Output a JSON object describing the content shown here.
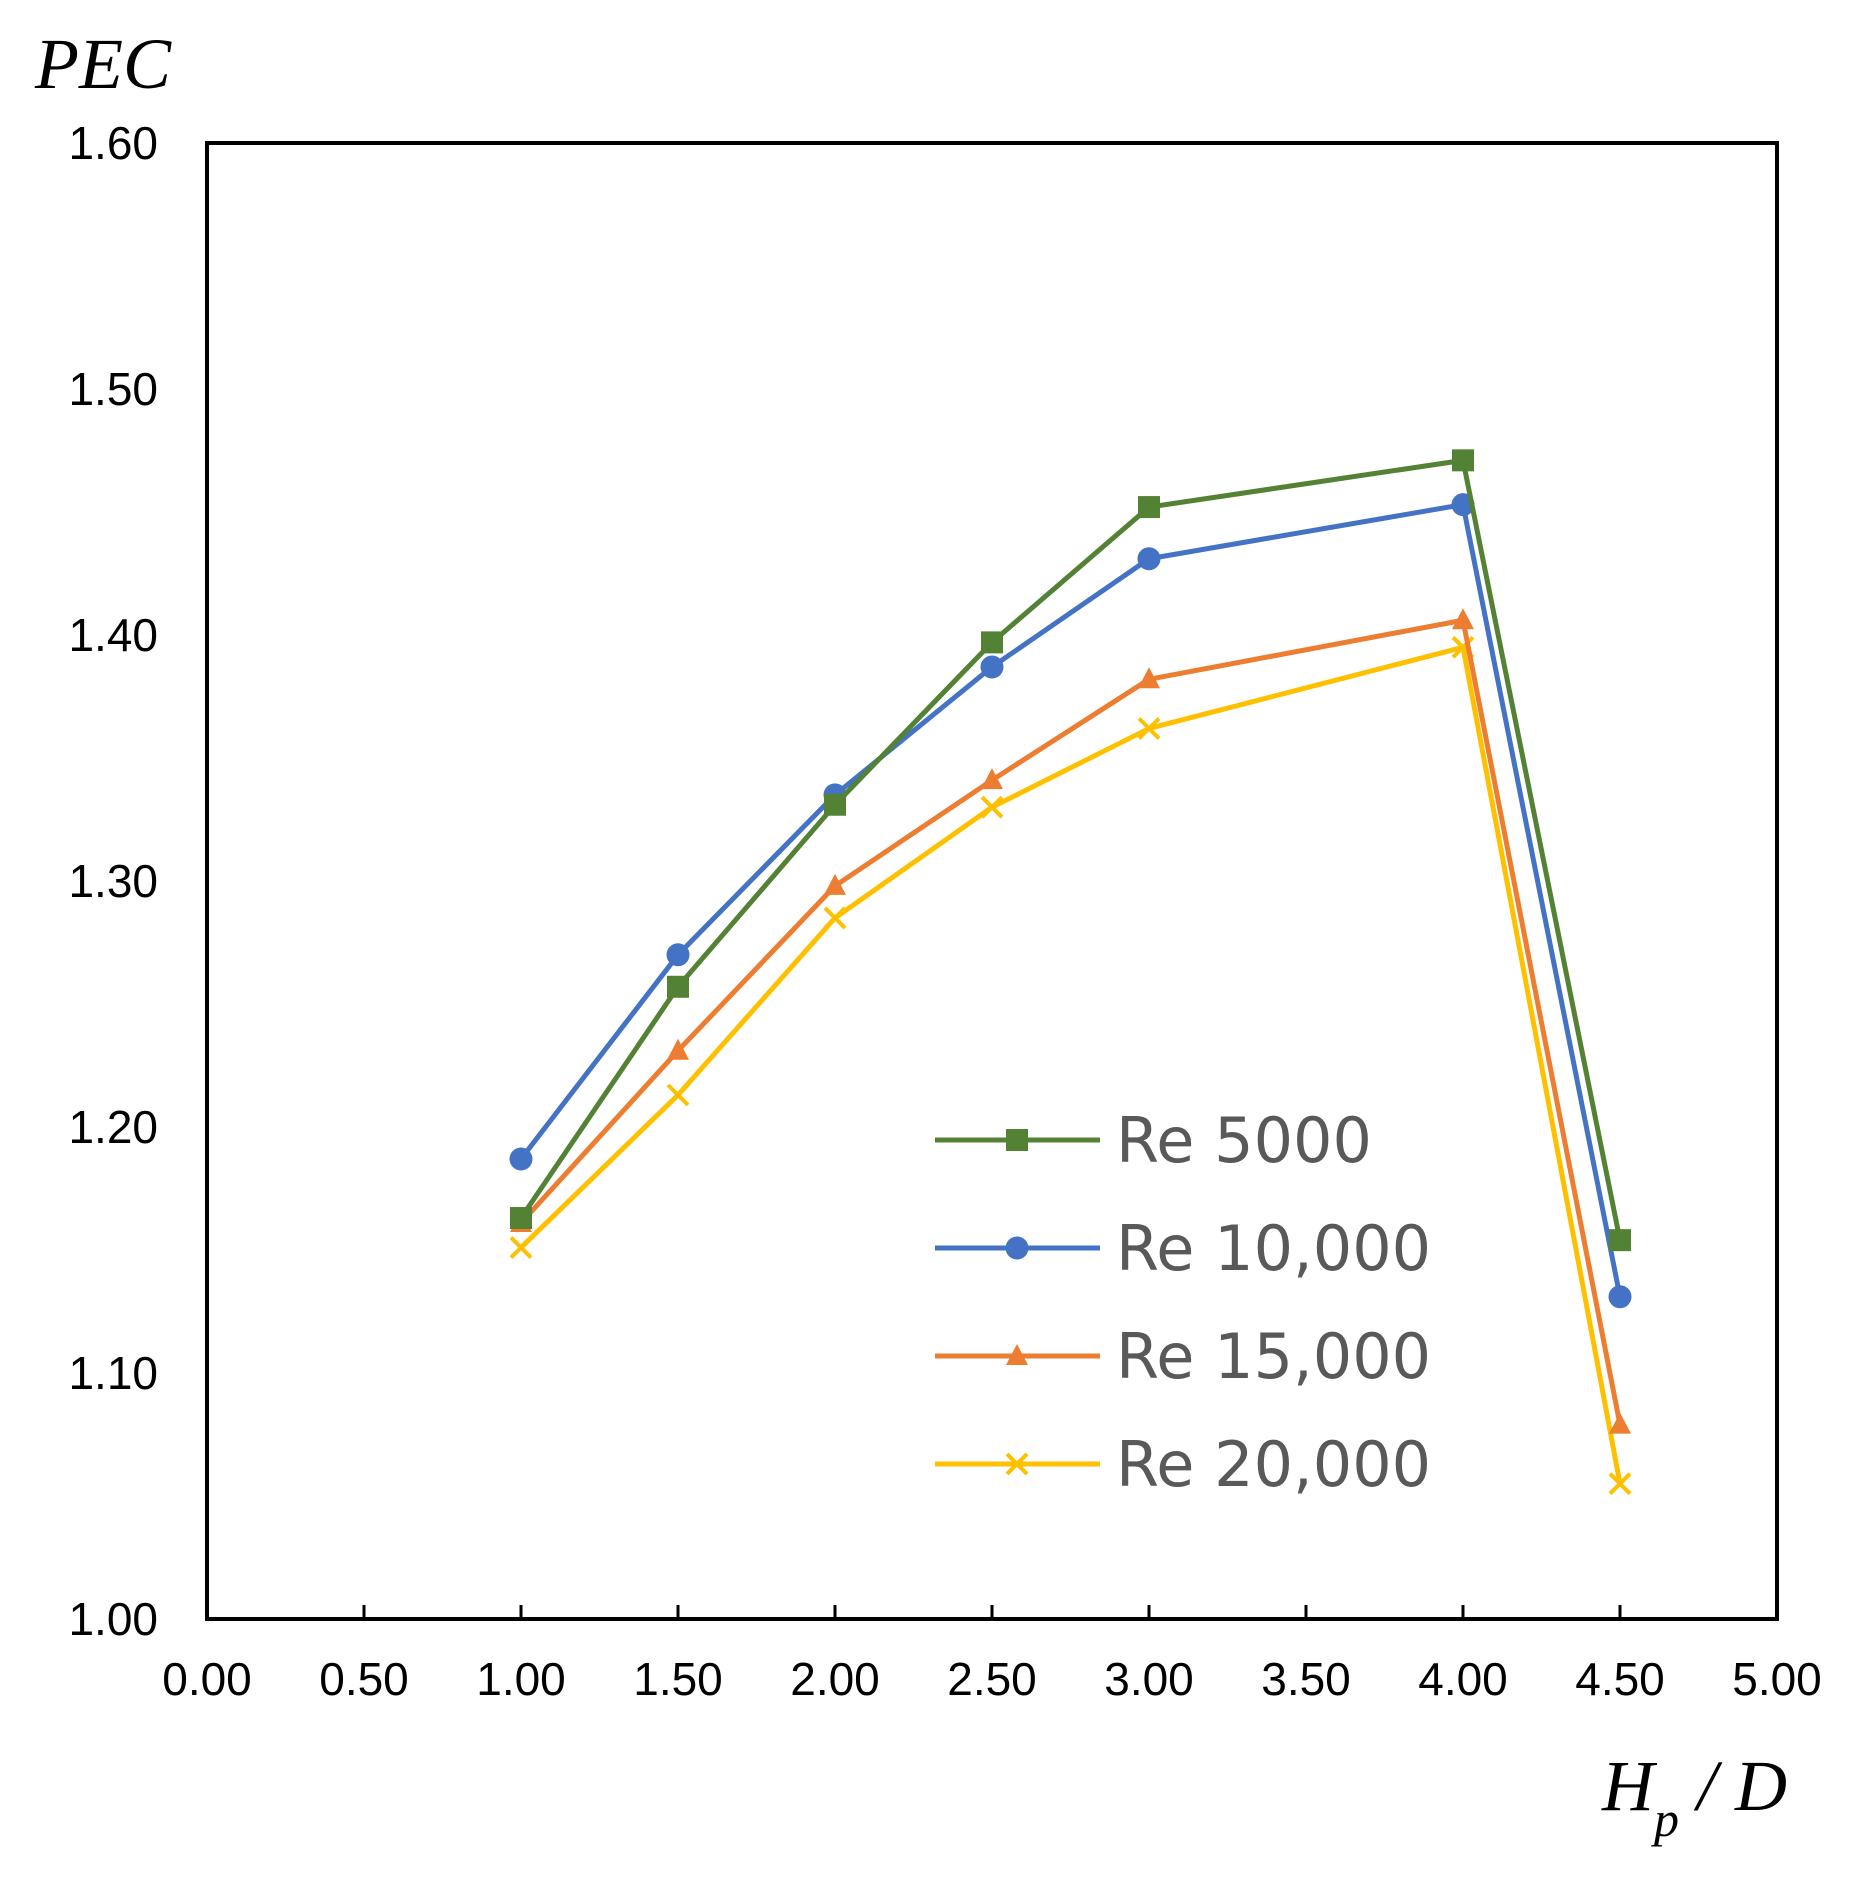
{
  "chart_data": {
    "type": "line",
    "title": "",
    "ylabel": "PEC",
    "xlabel": {
      "main": "H",
      "sub": "p",
      "rest": " / D"
    },
    "xlim": [
      0,
      5
    ],
    "ylim": [
      1.0,
      1.6
    ],
    "xticks": [
      "0.00",
      "0.50",
      "1.00",
      "1.50",
      "2.00",
      "2.50",
      "3.00",
      "3.50",
      "4.00",
      "4.50",
      "5.00"
    ],
    "yticks": [
      "1.00",
      "1.10",
      "1.20",
      "1.30",
      "1.40",
      "1.50",
      "1.60"
    ],
    "grid": false,
    "legend_position": "lower-right",
    "x": [
      1.0,
      1.5,
      2.0,
      2.5,
      3.0,
      4.0,
      4.5
    ],
    "series": [
      {
        "name": "Re 5000",
        "color": "#548235",
        "marker": "square",
        "values": [
          1.163,
          1.257,
          1.331,
          1.397,
          1.452,
          1.471,
          1.154
        ]
      },
      {
        "name": "Re 10,000",
        "color": "#4472C4",
        "marker": "circle",
        "values": [
          1.187,
          1.27,
          1.335,
          1.387,
          1.431,
          1.453,
          1.131
        ]
      },
      {
        "name": "Re 15,000",
        "color": "#ED7D31",
        "marker": "triangle",
        "values": [
          1.161,
          1.231,
          1.298,
          1.341,
          1.382,
          1.406,
          1.079
        ]
      },
      {
        "name": "Re 20,000",
        "color": "#FFC000",
        "marker": "x",
        "values": [
          1.151,
          1.213,
          1.285,
          1.33,
          1.362,
          1.395,
          1.055
        ]
      }
    ]
  }
}
